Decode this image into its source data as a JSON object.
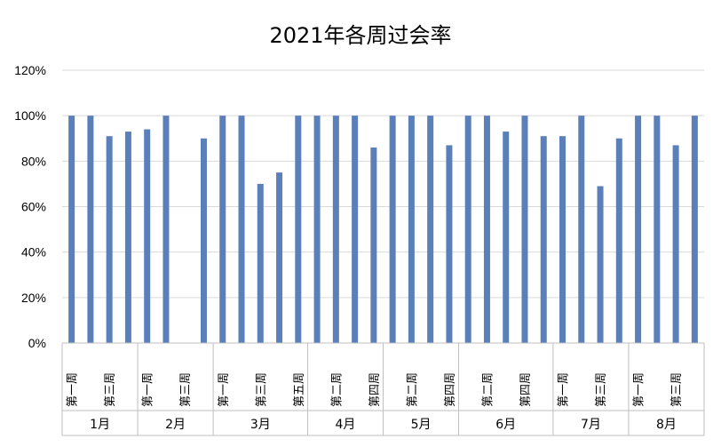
{
  "chart_data": {
    "type": "bar",
    "title": "2021年各周过会率",
    "xlabel": "",
    "ylabel": "",
    "ylim": [
      0,
      1.2
    ],
    "y_ticks": [
      "0%",
      "20%",
      "40%",
      "60%",
      "80%",
      "100%",
      "120%"
    ],
    "y_tick_values": [
      0,
      0.2,
      0.4,
      0.6,
      0.8,
      1.0,
      1.2
    ],
    "grid": true,
    "legend": "none",
    "bar_color": "#5b7fb8",
    "groups": [
      {
        "label": "1月",
        "categories": [
          "第一周",
          "第二周",
          "第三周",
          "第四周"
        ],
        "values": [
          1.0,
          1.0,
          0.91,
          0.93
        ],
        "shown_labels": [
          "第一周",
          "",
          "第三周",
          ""
        ]
      },
      {
        "label": "2月",
        "categories": [
          "第一周",
          "第二周",
          "第三周",
          "第四周"
        ],
        "values": [
          0.94,
          1.0,
          null,
          0.9
        ],
        "shown_labels": [
          "第一周",
          "",
          "第三周",
          ""
        ]
      },
      {
        "label": "3月",
        "categories": [
          "第一周",
          "第二周",
          "第三周",
          "第四周",
          "第五周"
        ],
        "values": [
          1.0,
          1.0,
          0.7,
          0.75,
          1.0
        ],
        "shown_labels": [
          "第一周",
          "",
          "第三周",
          "",
          "第五周"
        ]
      },
      {
        "label": "4月",
        "categories": [
          "第一周",
          "第二周",
          "第三周",
          "第四周"
        ],
        "values": [
          1.0,
          1.0,
          1.0,
          0.86
        ],
        "shown_labels": [
          "",
          "第二周",
          "",
          "第四周"
        ]
      },
      {
        "label": "5月",
        "categories": [
          "第一周",
          "第二周",
          "第三周",
          "第四周"
        ],
        "values": [
          1.0,
          1.0,
          1.0,
          0.87
        ],
        "shown_labels": [
          "",
          "第二周",
          "",
          "第四周"
        ]
      },
      {
        "label": "6月",
        "categories": [
          "第一周",
          "第二周",
          "第三周",
          "第四周",
          "第五周"
        ],
        "values": [
          1.0,
          1.0,
          0.93,
          1.0,
          0.91
        ],
        "shown_labels": [
          "",
          "第二周",
          "",
          "第四周",
          ""
        ]
      },
      {
        "label": "7月",
        "categories": [
          "第一周",
          "第二周",
          "第三周",
          "第四周"
        ],
        "values": [
          0.91,
          1.0,
          0.69,
          0.9
        ],
        "shown_labels": [
          "第一周",
          "",
          "第三周",
          ""
        ]
      },
      {
        "label": "8月",
        "categories": [
          "第一周",
          "第二周",
          "第三周",
          "第四周"
        ],
        "values": [
          1.0,
          1.0,
          0.87,
          1.0
        ],
        "shown_labels": [
          "第一周",
          "",
          "第三周",
          ""
        ]
      }
    ]
  }
}
